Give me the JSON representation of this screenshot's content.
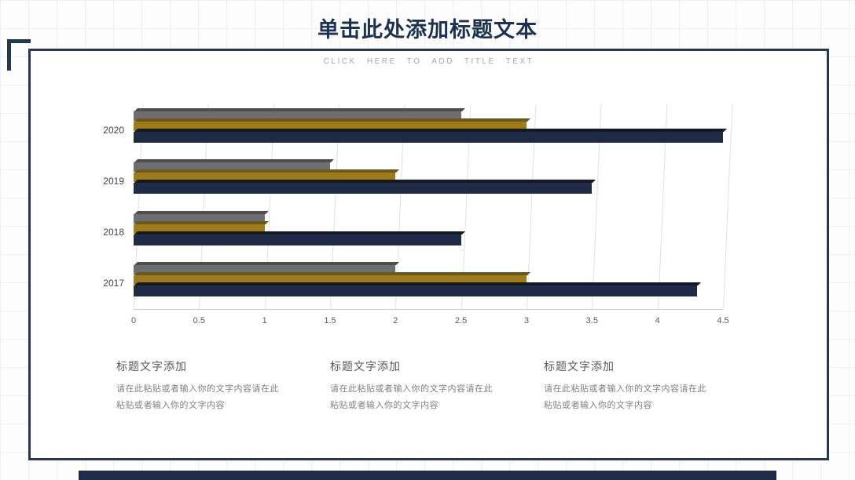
{
  "slide": {
    "title": "单击此处添加标题文本",
    "subtitle": "CLICK HERE TO ADD TITLE TEXT"
  },
  "chart_data": {
    "type": "bar",
    "orientation": "horizontal",
    "title": "",
    "xlabel": "",
    "ylabel": "",
    "categories": [
      "2020",
      "2019",
      "2018",
      "2017"
    ],
    "series": [
      {
        "name": "gray",
        "color": "#6e6e6e",
        "top_color": "#4e4e4e",
        "values": [
          2.5,
          1.5,
          1.0,
          2.0
        ]
      },
      {
        "name": "gold",
        "color": "#9c7c1d",
        "top_color": "#6e5712",
        "values": [
          3.0,
          2.0,
          1.0,
          3.0
        ]
      },
      {
        "name": "navy",
        "color": "#1d2b45",
        "top_color": "#101a2c",
        "values": [
          4.5,
          3.5,
          2.5,
          4.3
        ]
      }
    ],
    "x_ticks": [
      "0",
      "0.5",
      "1",
      "1.5",
      "2",
      "2.5",
      "3",
      "3.5",
      "4",
      "4.5"
    ],
    "xlim": [
      0,
      4.5
    ],
    "grid": true,
    "legend": false
  },
  "columns": [
    {
      "heading": "标题文字添加",
      "body": "请在此粘贴或者输入你的文字内容请在此粘贴或者输入你的文字内容"
    },
    {
      "heading": "标题文字添加",
      "body": "请在此粘贴或者输入你的文字内容请在此粘贴或者输入你的文字内容"
    },
    {
      "heading": "标题文字添加",
      "body": "请在此粘贴或者输入你的文字内容请在此粘贴或者输入你的文字内容"
    }
  ],
  "colors": {
    "accent_navy": "#1e2c47",
    "title_navy": "#1d3150",
    "frame_border": "#27374f"
  }
}
